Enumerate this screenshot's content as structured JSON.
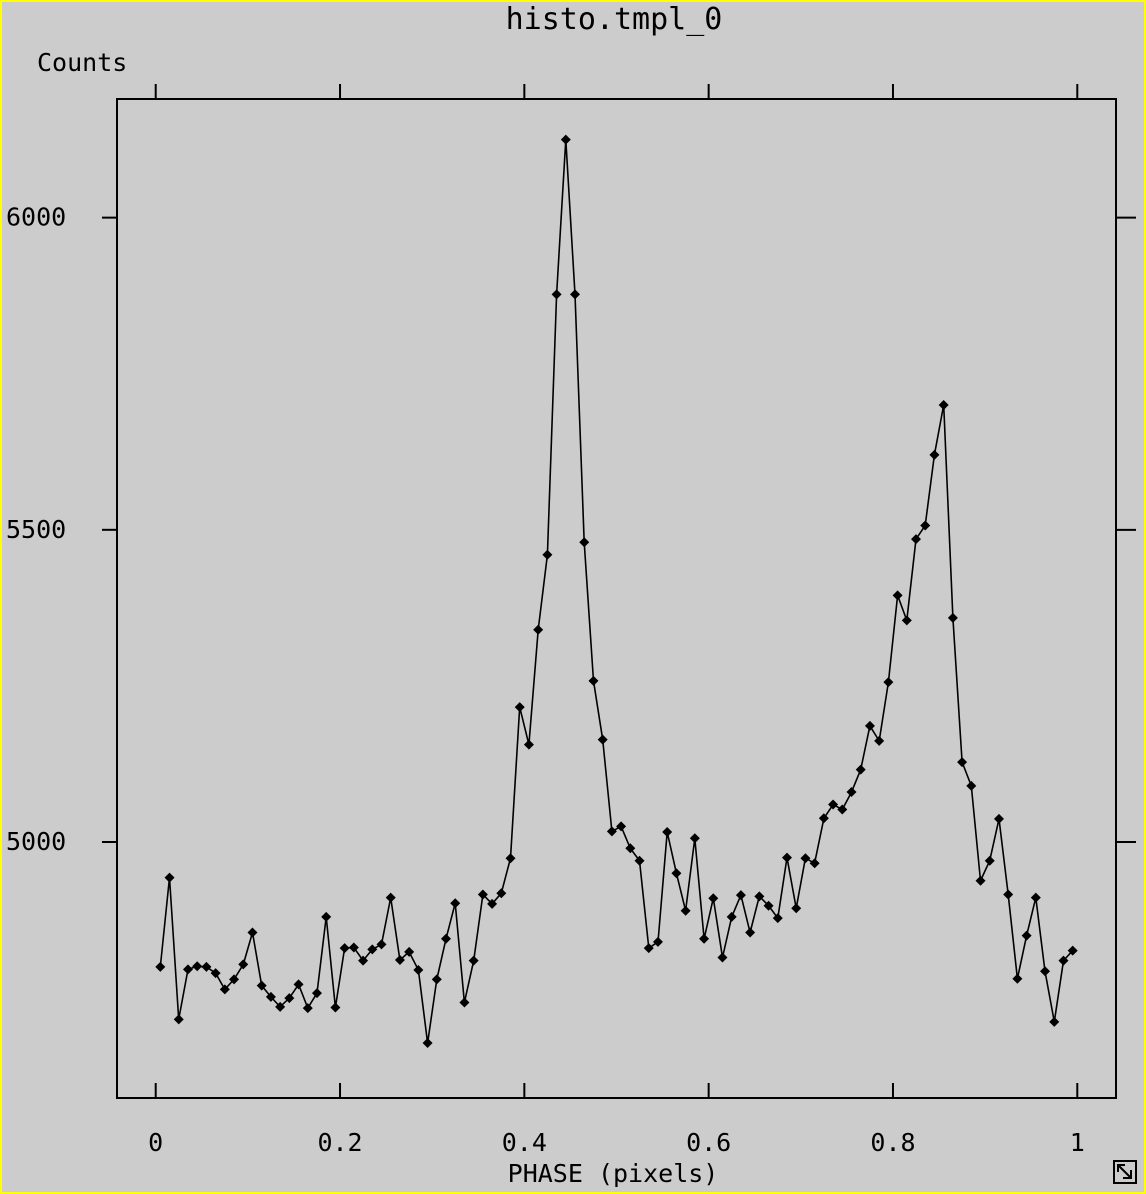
{
  "window": {
    "title": "histo.tmpl_0"
  },
  "colors": {
    "background": "#cccccc",
    "border": "#ffff00",
    "ink": "#000000"
  },
  "icons": {
    "corner": "resize-icon"
  },
  "chart_data": {
    "type": "line",
    "title": "histo.tmpl_0",
    "ylabel": "Counts",
    "xlabel": "PHASE (pixels)",
    "xlim": [
      -0.042,
      1.042
    ],
    "ylim": [
      4590,
      6190
    ],
    "x_ticks": [
      0,
      0.2,
      0.4,
      0.6,
      0.8,
      1
    ],
    "x_tick_labels": [
      "0",
      "0.2",
      "0.4",
      "0.6",
      "0.8",
      "1"
    ],
    "y_ticks": [
      5000,
      5500,
      6000
    ],
    "y_tick_labels": [
      "5000",
      "5500",
      "6000"
    ],
    "markers": "diamond",
    "series": [
      {
        "x": [
          0.005,
          0.015,
          0.025,
          0.035,
          0.045,
          0.055,
          0.065,
          0.075,
          0.085,
          0.095,
          0.105,
          0.115,
          0.125,
          0.135,
          0.145,
          0.155,
          0.165,
          0.175,
          0.185,
          0.195,
          0.205,
          0.215,
          0.225,
          0.235,
          0.245,
          0.255,
          0.265,
          0.275,
          0.285,
          0.295,
          0.305,
          0.315,
          0.325,
          0.335,
          0.345,
          0.355,
          0.365,
          0.375,
          0.385,
          0.395,
          0.405,
          0.415,
          0.425,
          0.435,
          0.445,
          0.455,
          0.465,
          0.475,
          0.485,
          0.495,
          0.505,
          0.515,
          0.525,
          0.535,
          0.545,
          0.555,
          0.565,
          0.575,
          0.585,
          0.595,
          0.605,
          0.615,
          0.625,
          0.635,
          0.645,
          0.655,
          0.665,
          0.675,
          0.685,
          0.695,
          0.705,
          0.715,
          0.725,
          0.735,
          0.745,
          0.755,
          0.765,
          0.775,
          0.785,
          0.795,
          0.805,
          0.815,
          0.825,
          0.835,
          0.845,
          0.855,
          0.865,
          0.875,
          0.885,
          0.895,
          0.905,
          0.915,
          0.925,
          0.935,
          0.945,
          0.955,
          0.965,
          0.975,
          0.985,
          0.995
        ],
        "values": [
          4800,
          4943,
          4716,
          4796,
          4801,
          4800,
          4790,
          4764,
          4780,
          4804,
          4855,
          4770,
          4752,
          4736,
          4750,
          4772,
          4734,
          4758,
          4880,
          4735,
          4830,
          4831,
          4810,
          4828,
          4836,
          4911,
          4811,
          4824,
          4795,
          4678,
          4780,
          4845,
          4902,
          4743,
          4810,
          4916,
          4901,
          4918,
          4974,
          5216,
          5156,
          5340,
          5460,
          5877,
          6125,
          5877,
          5480,
          5258,
          5164,
          5017,
          5025,
          4990,
          4970,
          4830,
          4840,
          5016,
          4950,
          4890,
          5006,
          4845,
          4910,
          4815,
          4880,
          4915,
          4855,
          4913,
          4898,
          4878,
          4975,
          4894,
          4974,
          4966,
          5038,
          5060,
          5052,
          5080,
          5116,
          5186,
          5162,
          5256,
          5395,
          5355,
          5485,
          5507,
          5620,
          5700,
          5359,
          5128,
          5090,
          4938,
          4970,
          5037,
          4916,
          4781,
          4850,
          4911,
          4793,
          4712,
          4810,
          4826
        ]
      }
    ]
  }
}
